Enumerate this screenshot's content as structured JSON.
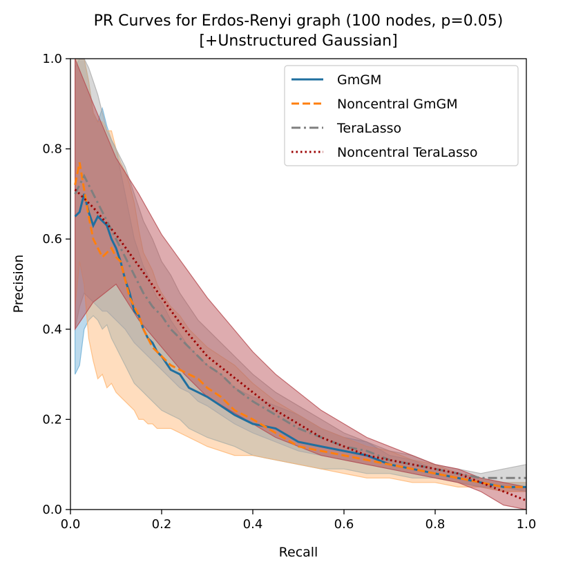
{
  "chart_data": {
    "type": "line",
    "title_line1": "PR Curves for Erdos-Renyi graph (100 nodes, p=0.05)",
    "title_line2": "[+Unstructured Gaussian]",
    "xlabel": "Recall",
    "ylabel": "Precision",
    "xlim": [
      0.0,
      1.0
    ],
    "ylim": [
      0.0,
      1.0
    ],
    "xticks": [
      0.0,
      0.2,
      0.4,
      0.6,
      0.8,
      1.0
    ],
    "yticks": [
      0.0,
      0.2,
      0.4,
      0.6,
      0.8,
      1.0
    ],
    "xtick_labels": [
      "0.0",
      "0.2",
      "0.4",
      "0.6",
      "0.8",
      "1.0"
    ],
    "ytick_labels": [
      "0.0",
      "0.2",
      "0.4",
      "0.6",
      "0.8",
      "1.0"
    ],
    "legend_position": "top-right",
    "series": [
      {
        "name": "GmGM",
        "color": "#1f6f9f",
        "band_color": "#6aaed6",
        "dash": "solid",
        "x": [
          0.01,
          0.02,
          0.03,
          0.04,
          0.05,
          0.06,
          0.07,
          0.08,
          0.09,
          0.1,
          0.11,
          0.12,
          0.13,
          0.14,
          0.15,
          0.16,
          0.17,
          0.18,
          0.19,
          0.2,
          0.22,
          0.24,
          0.26,
          0.28,
          0.3,
          0.33,
          0.36,
          0.4,
          0.45,
          0.5,
          0.55,
          0.6,
          0.65,
          0.7,
          0.75,
          0.8,
          0.85,
          0.9,
          0.95,
          1.0
        ],
        "y": [
          0.65,
          0.66,
          0.7,
          0.66,
          0.63,
          0.65,
          0.64,
          0.63,
          0.6,
          0.58,
          0.55,
          0.51,
          0.48,
          0.44,
          0.43,
          0.4,
          0.38,
          0.37,
          0.35,
          0.34,
          0.31,
          0.3,
          0.27,
          0.26,
          0.25,
          0.23,
          0.21,
          0.19,
          0.18,
          0.15,
          0.14,
          0.13,
          0.12,
          0.1,
          0.09,
          0.08,
          0.07,
          0.06,
          0.05,
          0.05
        ],
        "lower": [
          0.3,
          0.32,
          0.4,
          0.42,
          0.43,
          0.42,
          0.4,
          0.41,
          0.38,
          0.36,
          0.34,
          0.32,
          0.3,
          0.28,
          0.27,
          0.26,
          0.25,
          0.24,
          0.23,
          0.22,
          0.21,
          0.2,
          0.18,
          0.17,
          0.16,
          0.15,
          0.14,
          0.12,
          0.11,
          0.1,
          0.09,
          0.09,
          0.08,
          0.08,
          0.07,
          0.07,
          0.06,
          0.05,
          0.04,
          0.04
        ],
        "upper": [
          0.98,
          1.0,
          1.0,
          0.95,
          0.88,
          0.86,
          0.89,
          0.85,
          0.82,
          0.8,
          0.75,
          0.7,
          0.65,
          0.6,
          0.57,
          0.54,
          0.52,
          0.49,
          0.47,
          0.46,
          0.42,
          0.39,
          0.36,
          0.34,
          0.32,
          0.3,
          0.27,
          0.25,
          0.23,
          0.21,
          0.18,
          0.16,
          0.15,
          0.12,
          0.11,
          0.09,
          0.08,
          0.07,
          0.06,
          0.06
        ]
      },
      {
        "name": "Noncentral GmGM",
        "color": "#ff7f0e",
        "band_color": "#ffb46e",
        "dash": "dashed",
        "x": [
          0.01,
          0.02,
          0.03,
          0.04,
          0.05,
          0.06,
          0.07,
          0.08,
          0.09,
          0.1,
          0.11,
          0.12,
          0.13,
          0.14,
          0.15,
          0.16,
          0.17,
          0.18,
          0.19,
          0.2,
          0.22,
          0.24,
          0.26,
          0.28,
          0.3,
          0.33,
          0.36,
          0.4,
          0.45,
          0.5,
          0.55,
          0.6,
          0.65,
          0.7,
          0.75,
          0.8,
          0.85,
          0.9,
          0.95,
          1.0
        ],
        "y": [
          0.72,
          0.77,
          0.71,
          0.65,
          0.6,
          0.58,
          0.56,
          0.57,
          0.58,
          0.56,
          0.55,
          0.51,
          0.47,
          0.45,
          0.43,
          0.4,
          0.38,
          0.36,
          0.35,
          0.34,
          0.32,
          0.31,
          0.3,
          0.29,
          0.27,
          0.25,
          0.22,
          0.2,
          0.17,
          0.14,
          0.13,
          0.12,
          0.11,
          0.1,
          0.09,
          0.08,
          0.07,
          0.06,
          0.05,
          0.05
        ],
        "lower": [
          0.45,
          0.55,
          0.5,
          0.38,
          0.33,
          0.29,
          0.3,
          0.27,
          0.28,
          0.26,
          0.25,
          0.24,
          0.23,
          0.22,
          0.2,
          0.2,
          0.19,
          0.19,
          0.18,
          0.18,
          0.18,
          0.17,
          0.16,
          0.15,
          0.14,
          0.13,
          0.12,
          0.12,
          0.11,
          0.1,
          0.09,
          0.08,
          0.07,
          0.07,
          0.06,
          0.06,
          0.05,
          0.05,
          0.04,
          0.04
        ],
        "upper": [
          1.0,
          1.0,
          1.0,
          0.95,
          0.88,
          0.86,
          0.86,
          0.84,
          0.84,
          0.8,
          0.77,
          0.75,
          0.72,
          0.68,
          0.62,
          0.57,
          0.55,
          0.53,
          0.5,
          0.48,
          0.45,
          0.43,
          0.4,
          0.38,
          0.36,
          0.34,
          0.32,
          0.28,
          0.24,
          0.21,
          0.18,
          0.16,
          0.14,
          0.13,
          0.11,
          0.1,
          0.08,
          0.07,
          0.06,
          0.06
        ]
      },
      {
        "name": "TeraLasso",
        "color": "#7f7f7f",
        "band_color": "#a9a9a9",
        "dash": "dashdot",
        "x": [
          0.01,
          0.02,
          0.03,
          0.04,
          0.05,
          0.06,
          0.07,
          0.08,
          0.09,
          0.1,
          0.12,
          0.14,
          0.16,
          0.18,
          0.2,
          0.22,
          0.24,
          0.26,
          0.28,
          0.3,
          0.33,
          0.36,
          0.4,
          0.45,
          0.5,
          0.55,
          0.6,
          0.65,
          0.7,
          0.75,
          0.8,
          0.85,
          0.9,
          0.95,
          1.0
        ],
        "y": [
          0.7,
          0.72,
          0.74,
          0.72,
          0.7,
          0.68,
          0.66,
          0.64,
          0.62,
          0.6,
          0.56,
          0.52,
          0.48,
          0.45,
          0.43,
          0.4,
          0.38,
          0.36,
          0.34,
          0.32,
          0.3,
          0.27,
          0.24,
          0.21,
          0.18,
          0.16,
          0.14,
          0.13,
          0.11,
          0.1,
          0.09,
          0.08,
          0.07,
          0.07,
          0.07
        ],
        "lower": [
          0.4,
          0.45,
          0.48,
          0.47,
          0.46,
          0.45,
          0.44,
          0.44,
          0.43,
          0.42,
          0.4,
          0.37,
          0.35,
          0.33,
          0.31,
          0.29,
          0.27,
          0.26,
          0.24,
          0.23,
          0.21,
          0.19,
          0.17,
          0.15,
          0.13,
          0.12,
          0.11,
          0.1,
          0.09,
          0.08,
          0.07,
          0.06,
          0.05,
          0.05,
          0.04
        ],
        "upper": [
          1.0,
          1.0,
          1.0,
          0.98,
          0.95,
          0.92,
          0.88,
          0.84,
          0.82,
          0.8,
          0.76,
          0.7,
          0.64,
          0.6,
          0.55,
          0.52,
          0.48,
          0.45,
          0.42,
          0.4,
          0.37,
          0.34,
          0.3,
          0.26,
          0.23,
          0.2,
          0.17,
          0.15,
          0.13,
          0.12,
          0.1,
          0.09,
          0.08,
          0.09,
          0.1
        ]
      },
      {
        "name": "Noncentral TeraLasso",
        "color": "#9b0000",
        "band_color": "#b5484d",
        "dash": "dotted",
        "x": [
          0.01,
          0.05,
          0.1,
          0.15,
          0.2,
          0.25,
          0.3,
          0.35,
          0.4,
          0.45,
          0.5,
          0.55,
          0.6,
          0.65,
          0.7,
          0.75,
          0.8,
          0.85,
          0.9,
          0.95,
          1.0
        ],
        "y": [
          0.71,
          0.67,
          0.61,
          0.54,
          0.47,
          0.4,
          0.34,
          0.3,
          0.26,
          0.22,
          0.19,
          0.16,
          0.14,
          0.12,
          0.11,
          0.1,
          0.09,
          0.08,
          0.06,
          0.04,
          0.02
        ],
        "lower": [
          0.4,
          0.46,
          0.5,
          0.42,
          0.36,
          0.3,
          0.25,
          0.22,
          0.19,
          0.16,
          0.14,
          0.12,
          0.11,
          0.1,
          0.09,
          0.08,
          0.07,
          0.06,
          0.04,
          0.01,
          0.0
        ],
        "upper": [
          1.0,
          0.9,
          0.78,
          0.7,
          0.61,
          0.54,
          0.47,
          0.41,
          0.35,
          0.3,
          0.26,
          0.22,
          0.19,
          0.16,
          0.14,
          0.12,
          0.1,
          0.09,
          0.07,
          0.06,
          0.05
        ]
      }
    ]
  }
}
